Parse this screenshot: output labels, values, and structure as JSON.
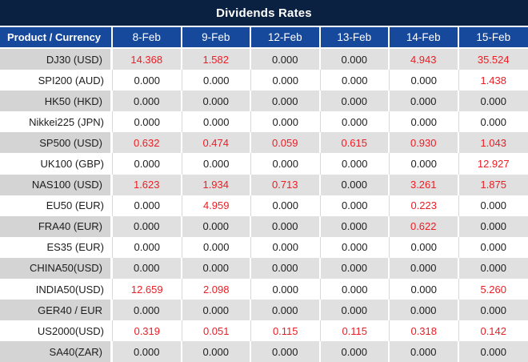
{
  "title": "Dividends Rates",
  "table": {
    "product_header": "Product / Currency",
    "date_headers": [
      "8-Feb",
      "9-Feb",
      "12-Feb",
      "13-Feb",
      "14-Feb",
      "15-Feb"
    ],
    "rows": [
      {
        "product": "DJ30 (USD)",
        "values": [
          "14.368",
          "1.582",
          "0.000",
          "0.000",
          "4.943",
          "35.524"
        ]
      },
      {
        "product": "SPI200 (AUD)",
        "values": [
          "0.000",
          "0.000",
          "0.000",
          "0.000",
          "0.000",
          "1.438"
        ]
      },
      {
        "product": "HK50 (HKD)",
        "values": [
          "0.000",
          "0.000",
          "0.000",
          "0.000",
          "0.000",
          "0.000"
        ]
      },
      {
        "product": "Nikkei225 (JPN)",
        "values": [
          "0.000",
          "0.000",
          "0.000",
          "0.000",
          "0.000",
          "0.000"
        ]
      },
      {
        "product": "SP500 (USD)",
        "values": [
          "0.632",
          "0.474",
          "0.059",
          "0.615",
          "0.930",
          "1.043"
        ]
      },
      {
        "product": "UK100 (GBP)",
        "values": [
          "0.000",
          "0.000",
          "0.000",
          "0.000",
          "0.000",
          "12.927"
        ]
      },
      {
        "product": "NAS100 (USD)",
        "values": [
          "1.623",
          "1.934",
          "0.713",
          "0.000",
          "3.261",
          "1.875"
        ]
      },
      {
        "product": "EU50 (EUR)",
        "values": [
          "0.000",
          "4.959",
          "0.000",
          "0.000",
          "0.223",
          "0.000"
        ]
      },
      {
        "product": "FRA40 (EUR)",
        "values": [
          "0.000",
          "0.000",
          "0.000",
          "0.000",
          "0.622",
          "0.000"
        ]
      },
      {
        "product": "ES35 (EUR)",
        "values": [
          "0.000",
          "0.000",
          "0.000",
          "0.000",
          "0.000",
          "0.000"
        ]
      },
      {
        "product": "CHINA50(USD)",
        "values": [
          "0.000",
          "0.000",
          "0.000",
          "0.000",
          "0.000",
          "0.000"
        ]
      },
      {
        "product": "INDIA50(USD)",
        "values": [
          "12.659",
          "2.098",
          "0.000",
          "0.000",
          "0.000",
          "5.260"
        ]
      },
      {
        "product": "GER40 / EUR",
        "values": [
          "0.000",
          "0.000",
          "0.000",
          "0.000",
          "0.000",
          "0.000"
        ]
      },
      {
        "product": "US2000(USD)",
        "values": [
          "0.319",
          "0.051",
          "0.115",
          "0.115",
          "0.318",
          "0.142"
        ]
      },
      {
        "product": "SA40(ZAR)",
        "values": [
          "0.000",
          "0.000",
          "0.000",
          "0.000",
          "0.000",
          "0.000"
        ]
      }
    ]
  },
  "colors": {
    "title_bar_background": "#0a2142",
    "header_row_background": "#16489c",
    "gray_row_background": "#e0e0e0",
    "gray_product_cell_background": "#d4d4d4",
    "positive_value_text": "#ee1c23",
    "zero_value_text": "#1d1d1d"
  }
}
